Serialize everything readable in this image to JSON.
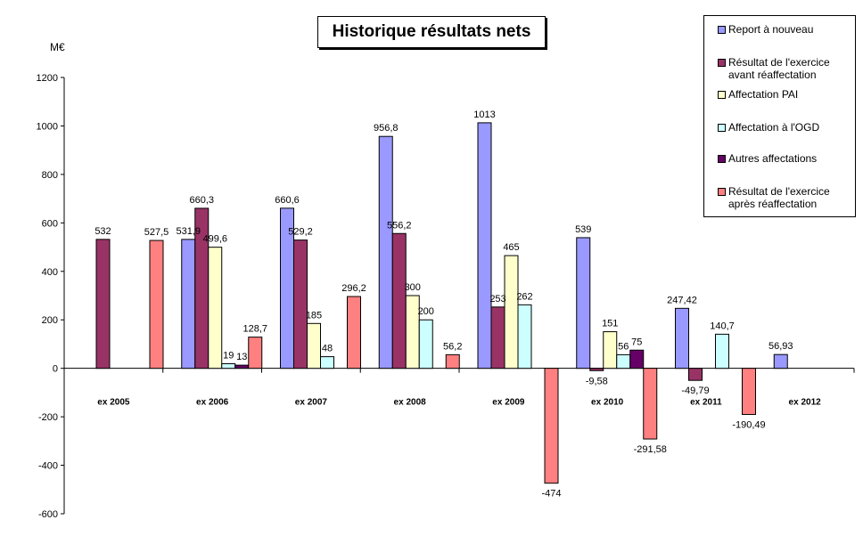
{
  "chart_data": {
    "type": "bar",
    "title": "Historique résultats nets",
    "unit_label": "M€",
    "categories": [
      "ex 2005",
      "ex 2006",
      "ex 2007",
      "ex 2008",
      "ex 2009",
      "ex 2010",
      "ex 2011",
      "ex 2012"
    ],
    "ylim": [
      -600,
      1200
    ],
    "yticks": [
      "-600",
      "-400",
      "-200",
      "0",
      "200",
      "400",
      "600",
      "800",
      "1000",
      "1200"
    ],
    "legend_position": "top-right",
    "grid": false,
    "series": [
      {
        "name": "Report à nouveau",
        "color": "#9999ff",
        "values": [
          null,
          531.9,
          660.6,
          956.8,
          1013,
          539,
          247.42,
          56.93
        ],
        "labels": [
          null,
          "531,9",
          "660,6",
          "956,8",
          "1013",
          "539",
          "247,42",
          "56,93"
        ]
      },
      {
        "name": "Résultat de l'exercice avant réaffectation",
        "color": "#993366",
        "values": [
          532,
          660.3,
          529.2,
          556.2,
          253,
          -9.58,
          -49.79,
          null
        ],
        "labels": [
          "532",
          "660,3",
          "529,2",
          "556,2",
          "253",
          "-9,58",
          "-49,79",
          null
        ]
      },
      {
        "name": "Affectation PAI",
        "color": "#ffffcc",
        "values": [
          null,
          499.6,
          185,
          300,
          465,
          151,
          null,
          null
        ],
        "labels": [
          null,
          "499,6",
          "185",
          "300",
          "465",
          "151",
          null,
          null
        ]
      },
      {
        "name": "Affectation à l'OGD",
        "color": "#ccffff",
        "values": [
          null,
          19,
          48,
          200,
          262,
          56,
          140.7,
          null
        ],
        "labels": [
          null,
          "19",
          "48",
          "200",
          "262",
          "56",
          "140,7",
          null
        ]
      },
      {
        "name": "Autres affectations",
        "color": "#660066",
        "values": [
          null,
          13,
          null,
          null,
          null,
          75,
          null,
          null
        ],
        "labels": [
          null,
          "13",
          null,
          null,
          null,
          "75",
          null,
          null
        ]
      },
      {
        "name": "Résultat de l'exercice après réaffectation",
        "color": "#ff8080",
        "values": [
          527.5,
          128.7,
          296.2,
          56.2,
          -474,
          -291.58,
          -190.49,
          null
        ],
        "labels": [
          "527,5",
          "128,7",
          "296,2",
          "56,2",
          "-474",
          "-291,58",
          "-190,49",
          null
        ]
      }
    ],
    "legend": [
      {
        "line1": "Report à nouveau",
        "line2": ""
      },
      {
        "line1": "Résultat de l'exercice",
        "line2": "avant réaffectation"
      },
      {
        "line1": "Affectation PAI",
        "line2": ""
      },
      {
        "line1": "Affectation à l'OGD",
        "line2": ""
      },
      {
        "line1": "Autres affectations",
        "line2": ""
      },
      {
        "line1": "Résultat de l'exercice",
        "line2": "après réaffectation"
      }
    ]
  }
}
